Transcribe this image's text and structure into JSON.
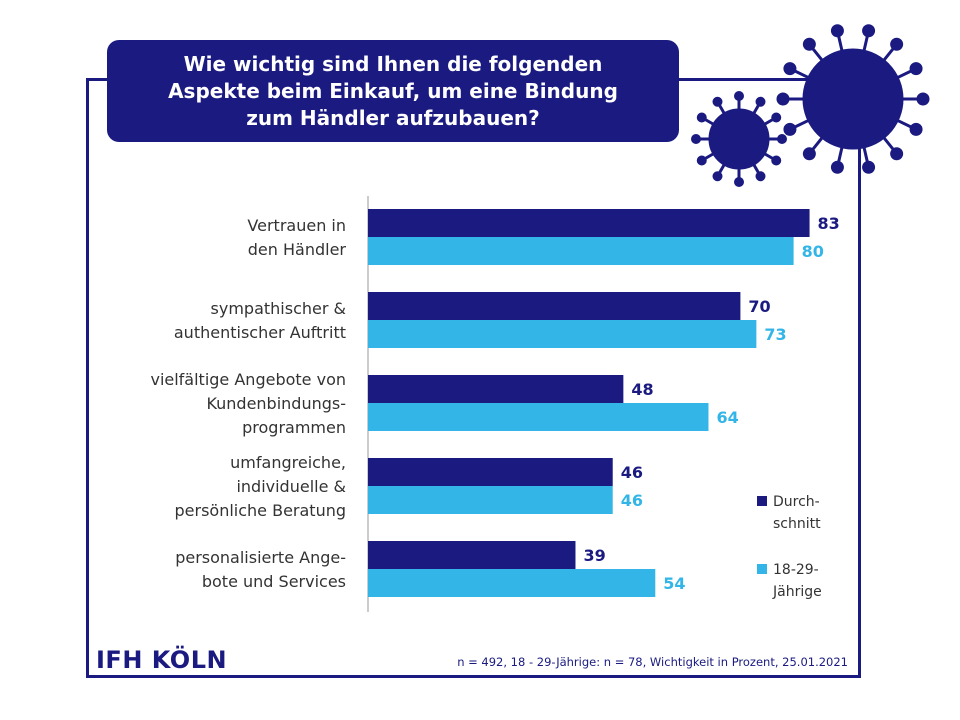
{
  "title": "Wie wichtig sind Ihnen die folgenden\nAspekte beim Einkauf, um eine Bindung\nzum Händler aufzubauen?",
  "logo": "IFH KÖLN",
  "footnote": "n = 492, 18 - 29-Jährige: n = 78, Wichtigkeit in Prozent, 25.01.2021",
  "colors": {
    "primary": "#1a1a80",
    "secondary": "#33b5e8",
    "label_text": "#333333"
  },
  "decorations": [
    "virus-icon-large",
    "virus-icon-small"
  ],
  "chart_data": {
    "type": "bar",
    "orientation": "horizontal",
    "categories": [
      "Vertrauen in\nden Händler",
      "sympathischer &\nauthentischer Auftritt",
      "vielfältige Angebote von\nKundenbindungs-\nprogrammen",
      "umfangreiche,\nindividuelle &\npersönliche Beratung",
      "personalisierte Ange-\nbote und Services"
    ],
    "series": [
      {
        "name": "Durch-\nschnitt",
        "values": [
          83,
          70,
          48,
          46,
          39
        ],
        "color": "#1a1a80"
      },
      {
        "name": "18-29-\nJährige",
        "values": [
          80,
          73,
          64,
          46,
          54
        ],
        "color": "#33b5e8"
      }
    ],
    "xlim": [
      0,
      100
    ],
    "grid": false,
    "legend_position": "right"
  }
}
